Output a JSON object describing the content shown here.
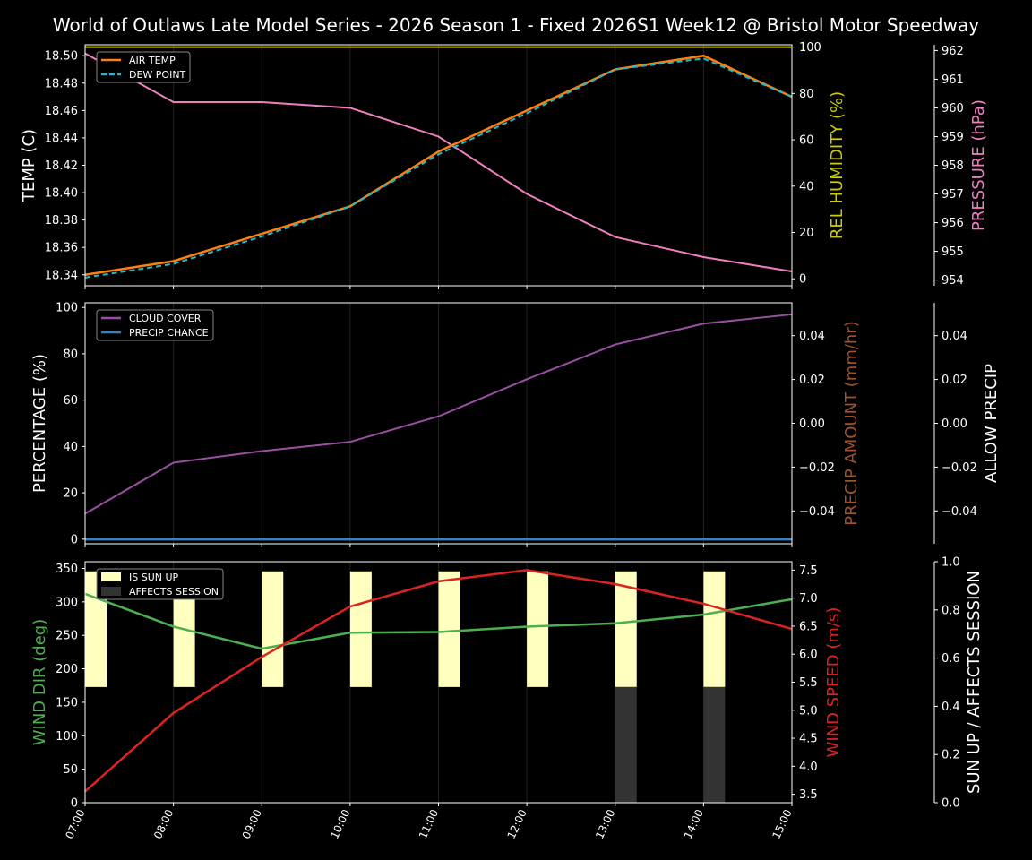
{
  "title": "World of Outlaws Late Model Series - 2026 Season 1 - Fixed 2026S1 Week12 @ Bristol Motor Speedway",
  "colors": {
    "background": "#000000",
    "axis": "#ffffff",
    "air_temp": "#ff7f0e",
    "dew_point": "#17becf",
    "humidity": "#cccc00",
    "pressure": "#f07fc0",
    "cloud": "#9b4fa3",
    "precip_chance": "#3f7fbf",
    "precip_amount": "#a0522d",
    "wind_dir": "#4caf50",
    "wind_speed": "#dd2222",
    "sun_up": "#ffffc0",
    "affects": "#333333"
  },
  "chart_data": [
    {
      "type": "line",
      "x": [
        "07:00",
        "08:00",
        "09:00",
        "10:00",
        "11:00",
        "12:00",
        "13:00",
        "14:00",
        "15:00"
      ],
      "ylabel": "TEMP (C)",
      "ylabel_right": "REL HUMIDITY (%)",
      "ylabel_right2": "PRESSURE (hPa)",
      "ylim": [
        18.332,
        18.508
      ],
      "y_ticks": [
        "18.34",
        "18.36",
        "18.38",
        "18.40",
        "18.42",
        "18.44",
        "18.46",
        "18.48",
        "18.50"
      ],
      "ylim_right": [
        -3,
        101
      ],
      "y_ticks_right": [
        "0",
        "20",
        "40",
        "60",
        "80",
        "100"
      ],
      "ylim_right2": [
        953.8,
        962.2
      ],
      "y_ticks_right2": [
        "954",
        "955",
        "956",
        "957",
        "958",
        "959",
        "960",
        "961",
        "962"
      ],
      "legend": [
        "AIR TEMP",
        "DEW POINT"
      ],
      "legend_position": "top-left",
      "series": [
        {
          "name": "AIR TEMP",
          "axis": "left",
          "values": [
            18.34,
            18.35,
            18.37,
            18.39,
            18.43,
            18.46,
            18.49,
            18.5,
            18.47
          ]
        },
        {
          "name": "DEW POINT",
          "axis": "left",
          "values": [
            18.338,
            18.348,
            18.368,
            18.39,
            18.428,
            18.458,
            18.49,
            18.498,
            18.47
          ]
        },
        {
          "axis": "right",
          "values": [
            100,
            100,
            100,
            100,
            100,
            100,
            100,
            100,
            100
          ]
        },
        {
          "axis": "right2",
          "values": [
            961.9,
            960.2,
            960.2,
            960.0,
            959.0,
            957.0,
            955.5,
            954.8,
            954.3
          ]
        }
      ]
    },
    {
      "type": "line",
      "x": [
        "07:00",
        "08:00",
        "09:00",
        "10:00",
        "11:00",
        "12:00",
        "13:00",
        "14:00",
        "15:00"
      ],
      "ylabel": "PERCENTAGE (%)",
      "ylabel_right": "PRECIP AMOUNT (mm/hr)",
      "ylabel_right2": "ALLOW PRECIP",
      "ylim": [
        -2,
        102
      ],
      "y_ticks": [
        "0",
        "20",
        "40",
        "60",
        "80",
        "100"
      ],
      "ylim_right": [
        -0.055,
        0.055
      ],
      "y_ticks_right": [
        "−0.04",
        "−0.02",
        "0.00",
        "0.02",
        "0.04"
      ],
      "y_ticks_right2": [
        "−0.04",
        "−0.02",
        "0.00",
        "0.02",
        "0.04"
      ],
      "legend": [
        "CLOUD COVER",
        "PRECIP CHANCE"
      ],
      "legend_position": "top-left",
      "series": [
        {
          "name": "CLOUD COVER",
          "axis": "left",
          "values": [
            11,
            33,
            38,
            42,
            53,
            69,
            84,
            93,
            97
          ]
        },
        {
          "name": "PRECIP CHANCE",
          "axis": "left",
          "values": [
            0,
            0,
            0,
            0,
            0,
            0,
            0,
            0,
            0
          ]
        }
      ]
    },
    {
      "type": "line",
      "x": [
        "07:00",
        "08:00",
        "09:00",
        "10:00",
        "11:00",
        "12:00",
        "13:00",
        "14:00",
        "15:00"
      ],
      "ylabel": "WIND DIR (deg)",
      "ylabel_right": "WIND SPEED (m/s)",
      "ylabel_right2": "SUN UP / AFFECTS SESSION",
      "ylim": [
        0,
        360
      ],
      "y_ticks": [
        "0",
        "50",
        "100",
        "150",
        "200",
        "250",
        "300",
        "350"
      ],
      "ylim_right": [
        3.35,
        7.65
      ],
      "y_ticks_right": [
        "3.5",
        "4.0",
        "4.5",
        "5.0",
        "5.5",
        "6.0",
        "6.5",
        "7.0",
        "7.5"
      ],
      "ylim_right2": [
        0,
        1.0
      ],
      "y_ticks_right2": [
        "0.0",
        "0.2",
        "0.4",
        "0.6",
        "0.8",
        "1.0"
      ],
      "legend": [
        "IS SUN UP",
        "AFFECTS SESSION"
      ],
      "legend_position": "top-left",
      "series": [
        {
          "name": "WIND DIR",
          "axis": "left",
          "values": [
            312,
            263,
            230,
            254,
            255,
            263,
            268,
            281,
            304
          ]
        },
        {
          "name": "WIND SPEED",
          "axis": "right",
          "values": [
            3.55,
            4.95,
            5.95,
            6.85,
            7.3,
            7.5,
            7.25,
            6.9,
            6.45
          ]
        },
        {
          "name": "IS SUN UP",
          "axis": "right2",
          "type": "bar",
          "values": [
            1,
            1,
            1,
            1,
            1,
            1,
            1,
            1,
            0
          ]
        },
        {
          "name": "AFFECTS SESSION",
          "axis": "right2",
          "type": "bar",
          "values": [
            0,
            0,
            0,
            0,
            0,
            0,
            1,
            1,
            0
          ]
        }
      ]
    }
  ]
}
